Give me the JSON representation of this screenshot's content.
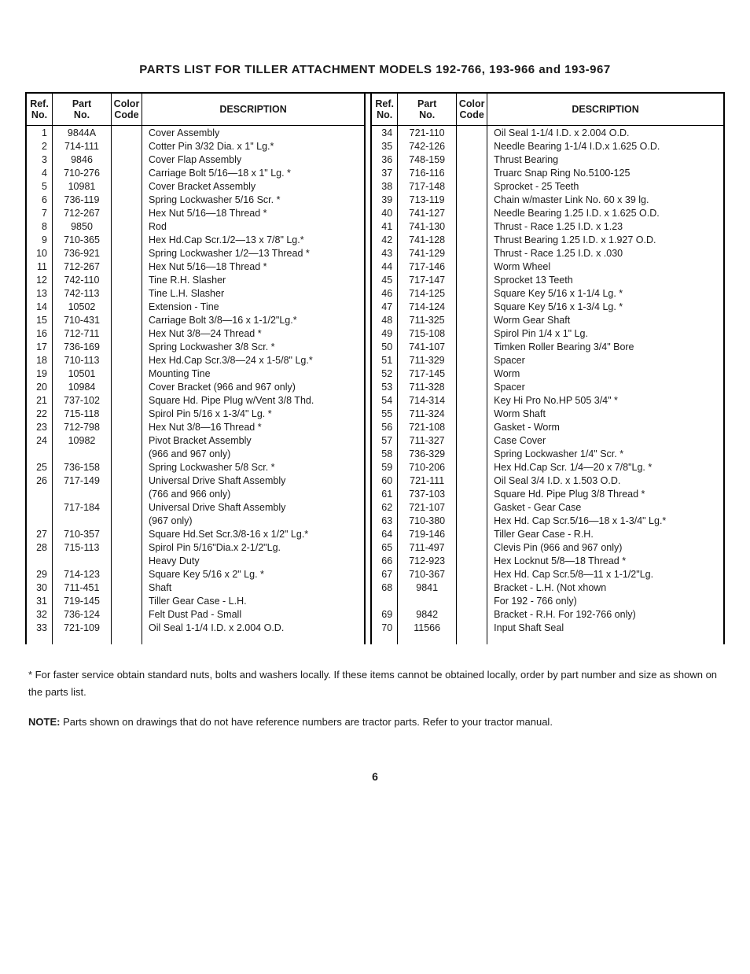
{
  "title": "PARTS LIST FOR TILLER ATTACHMENT MODELS 192-766, 193-966 and 193-967",
  "headers": {
    "ref": "Ref.\nNo.",
    "part": "Part\nNo.",
    "color": "Color\nCode",
    "desc": "DESCRIPTION"
  },
  "left": [
    {
      "r": "1",
      "p": "9844A",
      "d": "Cover Assembly"
    },
    {
      "r": "2",
      "p": "714-111",
      "d": "Cotter Pin 3/32 Dia. x 1\" Lg.*"
    },
    {
      "r": "3",
      "p": "9846",
      "d": "Cover Flap Assembly"
    },
    {
      "r": "4",
      "p": "710-276",
      "d": "Carriage Bolt 5/16—18 x 1\" Lg. *"
    },
    {
      "r": "5",
      "p": "10981",
      "d": "Cover Bracket Assembly"
    },
    {
      "r": "6",
      "p": "736-119",
      "d": "Spring Lockwasher 5/16 Scr. *"
    },
    {
      "r": "7",
      "p": "712-267",
      "d": "Hex Nut 5/16—18 Thread *"
    },
    {
      "r": "8",
      "p": "9850",
      "d": "Rod"
    },
    {
      "r": "9",
      "p": "710-365",
      "d": "Hex Hd.Cap Scr.1/2—13 x 7/8\" Lg.*"
    },
    {
      "r": "10",
      "p": "736-921",
      "d": "Spring Lockwasher 1/2—13 Thread *"
    },
    {
      "r": "11",
      "p": "712-267",
      "d": "Hex Nut 5/16—18 Thread *"
    },
    {
      "r": "12",
      "p": "742-110",
      "d": "Tine R.H. Slasher"
    },
    {
      "r": "13",
      "p": "742-113",
      "d": "Tine L.H. Slasher"
    },
    {
      "r": "14",
      "p": "10502",
      "d": "Extension - Tine"
    },
    {
      "r": "15",
      "p": "710-431",
      "d": "Carriage Bolt 3/8—16 x 1-1/2\"Lg.*"
    },
    {
      "r": "16",
      "p": "712-711",
      "d": "Hex Nut 3/8—24 Thread *"
    },
    {
      "r": "17",
      "p": "736-169",
      "d": "Spring Lockwasher 3/8 Scr. *"
    },
    {
      "r": "18",
      "p": "710-113",
      "d": "Hex Hd.Cap Scr.3/8—24 x 1-5/8\" Lg.*"
    },
    {
      "r": "19",
      "p": "10501",
      "d": "Mounting Tine"
    },
    {
      "r": "20",
      "p": "10984",
      "d": "Cover Bracket (966 and 967 only)"
    },
    {
      "r": "21",
      "p": "737-102",
      "d": "Square Hd. Pipe Plug w/Vent 3/8 Thd."
    },
    {
      "r": "22",
      "p": "715-118",
      "d": "Spirol Pin 5/16 x 1-3/4\" Lg. *"
    },
    {
      "r": "23",
      "p": "712-798",
      "d": "Hex Nut 3/8—16 Thread *"
    },
    {
      "r": "24",
      "p": "10982",
      "d": "Pivot Bracket Assembly"
    },
    {
      "r": "",
      "p": "",
      "d": "(966 and 967 only)"
    },
    {
      "r": "25",
      "p": "736-158",
      "d": "Spring Lockwasher 5/8 Scr. *"
    },
    {
      "r": "26",
      "p": "717-149",
      "d": "Universal Drive Shaft Assembly"
    },
    {
      "r": "",
      "p": "",
      "d": "(766 and 966 only)"
    },
    {
      "r": "",
      "p": "717-184",
      "d": "Universal Drive Shaft Assembly"
    },
    {
      "r": "",
      "p": "",
      "d": "(967 only)"
    },
    {
      "r": "27",
      "p": "710-357",
      "d": "Square Hd.Set Scr.3/8-16 x 1/2\" Lg.*"
    },
    {
      "r": "28",
      "p": "715-113",
      "d": "Spirol Pin 5/16\"Dia.x 2-1/2\"Lg."
    },
    {
      "r": "",
      "p": "",
      "d": "Heavy Duty"
    },
    {
      "r": "29",
      "p": "714-123",
      "d": "Square Key 5/16 x 2\" Lg. *"
    },
    {
      "r": "30",
      "p": "711-451",
      "d": "Shaft"
    },
    {
      "r": "31",
      "p": "719-145",
      "d": "Tiller Gear Case - L.H."
    },
    {
      "r": "32",
      "p": "736-124",
      "d": "Felt Dust Pad - Small"
    },
    {
      "r": "33",
      "p": "721-109",
      "d": "Oil Seal 1-1/4 I.D. x 2.004 O.D."
    }
  ],
  "right": [
    {
      "r": "34",
      "p": "721-110",
      "d": "Oil Seal 1-1/4 I.D. x 2.004 O.D."
    },
    {
      "r": "35",
      "p": "742-126",
      "d": "Needle Bearing 1-1/4 I.D.x 1.625 O.D."
    },
    {
      "r": "36",
      "p": "748-159",
      "d": "Thrust Bearing"
    },
    {
      "r": "37",
      "p": "716-116",
      "d": "Truarc Snap Ring No.5100-125"
    },
    {
      "r": "38",
      "p": "717-148",
      "d": "Sprocket - 25 Teeth"
    },
    {
      "r": "39",
      "p": "713-119",
      "d": "Chain w/master Link No. 60 x 39 lg."
    },
    {
      "r": "40",
      "p": "741-127",
      "d": "Needle Bearing 1.25 I.D. x 1.625 O.D."
    },
    {
      "r": "41",
      "p": "741-130",
      "d": "Thrust - Race 1.25 I.D. x 1.23"
    },
    {
      "r": "42",
      "p": "741-128",
      "d": "Thrust Bearing 1.25 I.D. x 1.927 O.D."
    },
    {
      "r": "43",
      "p": "741-129",
      "d": "Thrust - Race 1.25 I.D. x .030"
    },
    {
      "r": "44",
      "p": "717-146",
      "d": "Worm Wheel"
    },
    {
      "r": "45",
      "p": "717-147",
      "d": "Sprocket 13 Teeth"
    },
    {
      "r": "46",
      "p": "714-125",
      "d": "Square Key 5/16 x 1-1/4 Lg. *"
    },
    {
      "r": "47",
      "p": "714-124",
      "d": "Square Key 5/16 x 1-3/4 Lg. *"
    },
    {
      "r": "48",
      "p": "711-325",
      "d": "Worm Gear Shaft"
    },
    {
      "r": "49",
      "p": "715-108",
      "d": "Spirol Pin 1/4 x 1\" Lg."
    },
    {
      "r": "50",
      "p": "741-107",
      "d": "Timken Roller Bearing 3/4\" Bore"
    },
    {
      "r": "51",
      "p": "711-329",
      "d": "Spacer"
    },
    {
      "r": "52",
      "p": "717-145",
      "d": "Worm"
    },
    {
      "r": "53",
      "p": "711-328",
      "d": "Spacer"
    },
    {
      "r": "54",
      "p": "714-314",
      "d": "Key Hi Pro No.HP 505 3/4\" *"
    },
    {
      "r": "55",
      "p": "711-324",
      "d": "Worm Shaft"
    },
    {
      "r": "56",
      "p": "721-108",
      "d": "Gasket - Worm"
    },
    {
      "r": "57",
      "p": "711-327",
      "d": "Case Cover"
    },
    {
      "r": "58",
      "p": "736-329",
      "d": "Spring Lockwasher 1/4\" Scr. *"
    },
    {
      "r": "59",
      "p": "710-206",
      "d": "Hex Hd.Cap Scr. 1/4—20 x 7/8\"Lg. *"
    },
    {
      "r": "60",
      "p": "721-111",
      "d": "Oil Seal 3/4 I.D. x 1.503 O.D."
    },
    {
      "r": "61",
      "p": "737-103",
      "d": "Square Hd. Pipe Plug 3/8 Thread *"
    },
    {
      "r": "62",
      "p": "721-107",
      "d": "Gasket - Gear Case"
    },
    {
      "r": "63",
      "p": "710-380",
      "d": "Hex Hd. Cap Scr.5/16—18 x 1-3/4\" Lg.*"
    },
    {
      "r": "64",
      "p": "719-146",
      "d": "Tiller Gear Case - R.H."
    },
    {
      "r": "65",
      "p": "711-497",
      "d": "Clevis Pin (966 and 967 only)"
    },
    {
      "r": "66",
      "p": "712-923",
      "d": "Hex Locknut 5/8—18 Thread *"
    },
    {
      "r": "67",
      "p": "710-367",
      "d": "Hex Hd. Cap Scr.5/8—11 x 1-1/2\"Lg."
    },
    {
      "r": "68",
      "p": "9841",
      "d": "Bracket - L.H. (Not xhown"
    },
    {
      "r": "",
      "p": "",
      "d": "For 192 - 766 only)"
    },
    {
      "r": "69",
      "p": "9842",
      "d": "Bracket - R.H.  For 192-766 only)"
    },
    {
      "r": "70",
      "p": "11566",
      "d": "Input Shaft Seal"
    }
  ],
  "footnote1": "* For faster service obtain standard nuts, bolts and washers locally. If these items cannot be obtained locally, order by part number and size as shown on the parts list.",
  "footnote2_lead": "NOTE:",
  "footnote2_body": "  Parts shown on drawings that do not have reference numbers are tractor parts. Refer to your tractor manual.",
  "pagenum": "6"
}
